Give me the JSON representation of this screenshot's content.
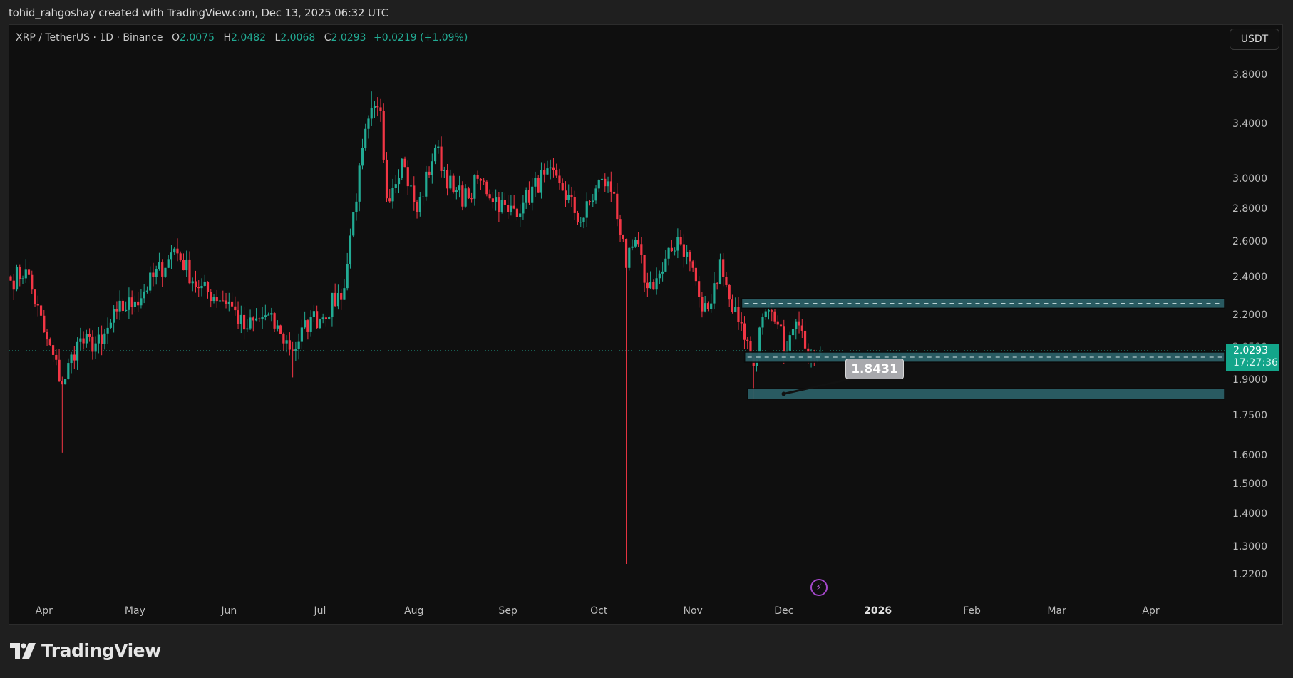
{
  "header": {
    "credit": "tohid_rahgoshay created with TradingView.com, Dec 13, 2025 06:32 UTC"
  },
  "legend": {
    "symbol": "XRP / TetherUS · 1D · Binance",
    "open_label": "O",
    "open": "2.0075",
    "high_label": "H",
    "high": "2.0482",
    "low_label": "L",
    "low": "2.0068",
    "close_label": "C",
    "close": "2.0293",
    "change": "+0.0219 (+1.09%)"
  },
  "currency_button": "USDT",
  "price_tag": {
    "price": "2.0293",
    "countdown": "17:27:36",
    "ghost_label": "2.0500"
  },
  "callout": {
    "value": "1.8431"
  },
  "logo": {
    "text": "TradingView"
  },
  "colors": {
    "up": "#22ab94",
    "down": "#f23645",
    "zone_fill": "#2b5f66",
    "zone_border": "#0a0a0a",
    "background": "#0f0f0f",
    "accent_event": "#a347c9"
  },
  "chart_data": {
    "type": "candlestick",
    "title": "XRP / TetherUS · 1D · Binance",
    "xlabel": "",
    "ylabel": "USDT",
    "scale": "log",
    "ylim": [
      1.18,
      4.0
    ],
    "y_ticks": [
      "3.8000",
      "3.4000",
      "3.0000",
      "2.8000",
      "2.6000",
      "2.4000",
      "2.2000",
      "1.9000",
      "1.7500",
      "1.6000",
      "1.5000",
      "1.4000",
      "1.3000",
      "1.2200"
    ],
    "x_ticks": [
      "Apr",
      "May",
      "Jun",
      "Jul",
      "Aug",
      "Sep",
      "Oct",
      "Nov",
      "Dec",
      "2026",
      "Feb",
      "Mar",
      "Apr"
    ],
    "x_tick_bold": "2026",
    "start_date": "2025-03-21",
    "end_date": "2025-12-13",
    "close_waypoints": [
      [
        "2025-03-21",
        2.38
      ],
      [
        "2025-03-26",
        2.44
      ],
      [
        "2025-04-01",
        2.12
      ],
      [
        "2025-04-07",
        1.88
      ],
      [
        "2025-04-12",
        2.07
      ],
      [
        "2025-04-20",
        2.06
      ],
      [
        "2025-04-25",
        2.22
      ],
      [
        "2025-05-01",
        2.27
      ],
      [
        "2025-05-12",
        2.5
      ],
      [
        "2025-05-14",
        2.56
      ],
      [
        "2025-05-22",
        2.34
      ],
      [
        "2025-06-01",
        2.27
      ],
      [
        "2025-06-06",
        2.13
      ],
      [
        "2025-06-13",
        2.2
      ],
      [
        "2025-06-18",
        2.11
      ],
      [
        "2025-06-22",
        2.03
      ],
      [
        "2025-06-28",
        2.19
      ],
      [
        "2025-07-01",
        2.18
      ],
      [
        "2025-07-09",
        2.34
      ],
      [
        "2025-07-12",
        2.78
      ],
      [
        "2025-07-17",
        3.44
      ],
      [
        "2025-07-21",
        3.5
      ],
      [
        "2025-07-23",
        2.87
      ],
      [
        "2025-07-28",
        3.14
      ],
      [
        "2025-08-02",
        2.78
      ],
      [
        "2025-08-08",
        3.22
      ],
      [
        "2025-08-14",
        2.91
      ],
      [
        "2025-08-19",
        2.87
      ],
      [
        "2025-08-22",
        3.0
      ],
      [
        "2025-09-01",
        2.78
      ],
      [
        "2025-09-06",
        2.84
      ],
      [
        "2025-09-13",
        3.03
      ],
      [
        "2025-09-18",
        2.97
      ],
      [
        "2025-09-25",
        2.72
      ],
      [
        "2025-10-02",
        3.0
      ],
      [
        "2025-10-06",
        2.9
      ],
      [
        "2025-10-10",
        2.45
      ],
      [
        "2025-10-13",
        2.61
      ],
      [
        "2025-10-17",
        2.34
      ],
      [
        "2025-10-22",
        2.43
      ],
      [
        "2025-10-27",
        2.63
      ],
      [
        "2025-11-01",
        2.45
      ],
      [
        "2025-11-04",
        2.22
      ],
      [
        "2025-11-07",
        2.26
      ],
      [
        "2025-11-10",
        2.5
      ],
      [
        "2025-11-13",
        2.28
      ],
      [
        "2025-11-17",
        2.16
      ],
      [
        "2025-11-21",
        1.96
      ],
      [
        "2025-11-24",
        2.19
      ],
      [
        "2025-11-28",
        2.17
      ],
      [
        "2025-12-02",
        2.03
      ],
      [
        "2025-12-05",
        2.17
      ],
      [
        "2025-12-08",
        2.04
      ],
      [
        "2025-12-13",
        2.0293
      ]
    ],
    "extreme_wicks": [
      [
        "2025-04-07",
        "low",
        1.61
      ],
      [
        "2025-06-22",
        "low",
        1.91
      ],
      [
        "2025-07-18",
        "high",
        3.66
      ],
      [
        "2025-10-10",
        "low",
        1.25
      ],
      [
        "2025-11-21",
        "low",
        1.82
      ]
    ],
    "last_candle": {
      "open": 2.0075,
      "high": 2.0482,
      "low": 2.0068,
      "close": 2.0293
    },
    "zones": [
      {
        "name": "resistance-zone",
        "from": "2025-11-18",
        "price_top": 2.27,
        "price_bottom": 2.25
      },
      {
        "name": "support-zone-upper",
        "from": "2025-11-19",
        "price_top": 2.01,
        "price_bottom": 1.99
      },
      {
        "name": "support-zone-lower",
        "from": "2025-11-20",
        "price_top": 1.85,
        "price_bottom": 1.83
      }
    ],
    "annotation": {
      "text": "1.8431",
      "price": 1.8431,
      "date": "2025-11-30"
    },
    "current_price_line": 2.0293
  }
}
